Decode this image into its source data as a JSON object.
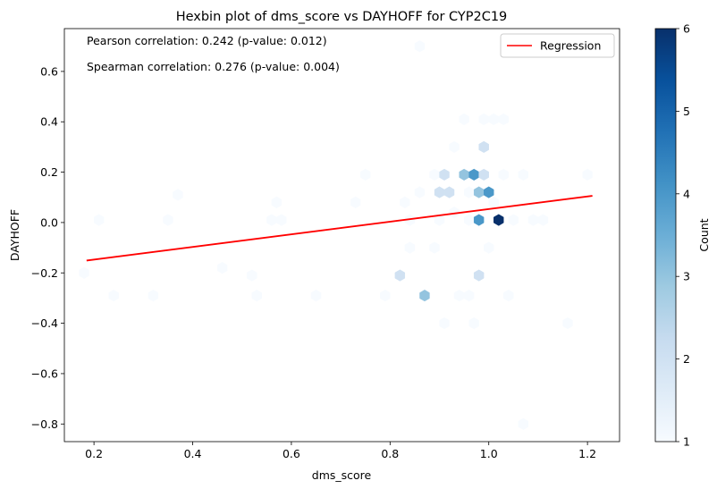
{
  "chart_data": {
    "type": "hexbin",
    "title": "Hexbin plot of dms_score vs DAYHOFF for CYP2C19",
    "xlabel": "dms_score",
    "ylabel": "DAYHOFF",
    "xlim": [
      0.14,
      1.265
    ],
    "ylim": [
      -0.87,
      0.77
    ],
    "xticks": [
      0.2,
      0.4,
      0.6,
      0.8,
      1.0,
      1.2
    ],
    "xtick_labels": [
      "0.2",
      "0.4",
      "0.6",
      "0.8",
      "1.0",
      "1.2"
    ],
    "yticks": [
      -0.8,
      -0.6,
      -0.4,
      -0.2,
      0.0,
      0.2,
      0.4,
      0.6
    ],
    "ytick_labels": [
      "−0.8",
      "−0.6",
      "−0.4",
      "−0.2",
      "0.0",
      "0.2",
      "0.4",
      "0.6"
    ],
    "annotations": [
      "Pearson correlation: 0.242 (p-value: 0.012)",
      "Spearman correlation: 0.276 (p-value: 0.004)"
    ],
    "legend": {
      "location": "upper right",
      "entries": [
        {
          "label": "Regression",
          "color": "#ff0000"
        }
      ]
    },
    "regression": {
      "x": [
        0.185,
        1.21
      ],
      "y": [
        -0.151,
        0.106
      ],
      "color": "#ff0000"
    },
    "colorbar": {
      "label": "Count",
      "min": 1,
      "max": 6,
      "ticks": [
        1,
        2,
        3,
        4,
        5,
        6
      ],
      "tick_labels": [
        "1",
        "2",
        "3",
        "4",
        "5",
        "6"
      ],
      "colormap": "Blues"
    },
    "hexbins": [
      {
        "x": 0.18,
        "y": -0.2,
        "count": 1
      },
      {
        "x": 0.21,
        "y": 0.01,
        "count": 1
      },
      {
        "x": 0.24,
        "y": -0.29,
        "count": 1
      },
      {
        "x": 0.32,
        "y": -0.29,
        "count": 1
      },
      {
        "x": 0.35,
        "y": 0.01,
        "count": 1
      },
      {
        "x": 0.37,
        "y": 0.11,
        "count": 1
      },
      {
        "x": 0.46,
        "y": -0.18,
        "count": 1
      },
      {
        "x": 0.52,
        "y": -0.21,
        "count": 1
      },
      {
        "x": 0.53,
        "y": -0.29,
        "count": 1
      },
      {
        "x": 0.56,
        "y": 0.01,
        "count": 1
      },
      {
        "x": 0.57,
        "y": 0.08,
        "count": 1
      },
      {
        "x": 0.58,
        "y": 0.01,
        "count": 1
      },
      {
        "x": 0.65,
        "y": -0.29,
        "count": 1
      },
      {
        "x": 0.73,
        "y": 0.08,
        "count": 1
      },
      {
        "x": 0.75,
        "y": 0.19,
        "count": 1
      },
      {
        "x": 0.79,
        "y": -0.29,
        "count": 1
      },
      {
        "x": 0.82,
        "y": -0.21,
        "count": 2
      },
      {
        "x": 0.83,
        "y": 0.08,
        "count": 1
      },
      {
        "x": 0.84,
        "y": 0.01,
        "count": 1
      },
      {
        "x": 0.84,
        "y": -0.1,
        "count": 1
      },
      {
        "x": 0.86,
        "y": 0.7,
        "count": 1
      },
      {
        "x": 0.86,
        "y": 0.12,
        "count": 1
      },
      {
        "x": 0.87,
        "y": -0.29,
        "count": 3
      },
      {
        "x": 0.89,
        "y": 0.19,
        "count": 1
      },
      {
        "x": 0.89,
        "y": -0.1,
        "count": 1
      },
      {
        "x": 0.9,
        "y": 0.12,
        "count": 2
      },
      {
        "x": 0.9,
        "y": 0.01,
        "count": 1
      },
      {
        "x": 0.91,
        "y": 0.19,
        "count": 2
      },
      {
        "x": 0.91,
        "y": -0.4,
        "count": 1
      },
      {
        "x": 0.92,
        "y": 0.12,
        "count": 2
      },
      {
        "x": 0.93,
        "y": 0.3,
        "count": 1
      },
      {
        "x": 0.93,
        "y": 0.04,
        "count": 1
      },
      {
        "x": 0.94,
        "y": -0.29,
        "count": 1
      },
      {
        "x": 0.95,
        "y": 0.41,
        "count": 1
      },
      {
        "x": 0.95,
        "y": 0.19,
        "count": 3
      },
      {
        "x": 0.96,
        "y": 0.12,
        "count": 1
      },
      {
        "x": 0.96,
        "y": 0.01,
        "count": 1
      },
      {
        "x": 0.96,
        "y": -0.29,
        "count": 1
      },
      {
        "x": 0.97,
        "y": 0.19,
        "count": 4
      },
      {
        "x": 0.97,
        "y": -0.4,
        "count": 1
      },
      {
        "x": 0.98,
        "y": 0.12,
        "count": 3
      },
      {
        "x": 0.98,
        "y": 0.01,
        "count": 4
      },
      {
        "x": 0.98,
        "y": -0.21,
        "count": 2
      },
      {
        "x": 0.99,
        "y": 0.41,
        "count": 1
      },
      {
        "x": 0.99,
        "y": 0.3,
        "count": 2
      },
      {
        "x": 0.99,
        "y": 0.19,
        "count": 2
      },
      {
        "x": 1.0,
        "y": 0.12,
        "count": 4
      },
      {
        "x": 1.0,
        "y": -0.1,
        "count": 1
      },
      {
        "x": 1.01,
        "y": 0.41,
        "count": 1
      },
      {
        "x": 1.01,
        "y": 0.08,
        "count": 1
      },
      {
        "x": 1.02,
        "y": 0.01,
        "count": 6
      },
      {
        "x": 1.03,
        "y": 0.41,
        "count": 1
      },
      {
        "x": 1.03,
        "y": 0.19,
        "count": 1
      },
      {
        "x": 1.04,
        "y": -0.29,
        "count": 1
      },
      {
        "x": 1.05,
        "y": 0.01,
        "count": 1
      },
      {
        "x": 1.07,
        "y": 0.19,
        "count": 1
      },
      {
        "x": 1.07,
        "y": -0.8,
        "count": 1
      },
      {
        "x": 1.09,
        "y": 0.01,
        "count": 1
      },
      {
        "x": 1.11,
        "y": 0.01,
        "count": 1
      },
      {
        "x": 1.16,
        "y": -0.4,
        "count": 1
      },
      {
        "x": 1.2,
        "y": 0.19,
        "count": 1
      }
    ]
  }
}
